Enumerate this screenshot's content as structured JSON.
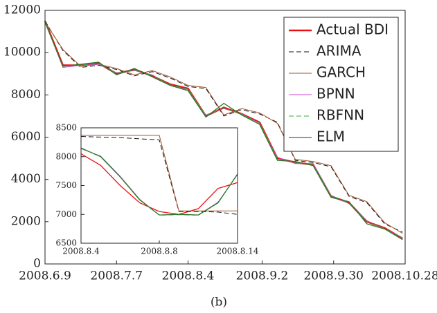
{
  "chart_data": [
    {
      "type": "line",
      "x": [
        "2008.6.9",
        "2008.6.16",
        "2008.6.23",
        "2008.6.30",
        "2008.7.7",
        "2008.7.14",
        "2008.7.21",
        "2008.7.28",
        "2008.8.4",
        "2008.8.11",
        "2008.8.18",
        "2008.8.25",
        "2008.9.1",
        "2008.9.8",
        "2008.9.15",
        "2008.9.22",
        "2008.9.29",
        "2008.10.6",
        "2008.10.13",
        "2008.10.20",
        "2008.10.27"
      ],
      "series": [
        {
          "name": "Actual BDI",
          "color": "#ee1111",
          "linewidth": 2.6,
          "linestyle": "solid",
          "values": [
            11500,
            9400,
            9400,
            9500,
            9000,
            9200,
            8900,
            8500,
            8300,
            7000,
            7400,
            7100,
            6700,
            5000,
            4800,
            4700,
            3200,
            2900,
            2000,
            1700,
            1200
          ]
        },
        {
          "name": "ARIMA",
          "color": "#111111",
          "linewidth": 1,
          "linestyle": "dashed",
          "values": [
            11500,
            10100,
            9300,
            9400,
            9200,
            8900,
            9100,
            8800,
            8400,
            8300,
            7000,
            7300,
            7100,
            6700,
            4900,
            4800,
            4600,
            3200,
            2900,
            1900,
            1500
          ]
        },
        {
          "name": "GARCH",
          "color": "#a0522d",
          "linewidth": 1,
          "linestyle": "solid",
          "values": [
            11450,
            10150,
            9350,
            9450,
            9250,
            8950,
            9150,
            8850,
            8450,
            8350,
            7050,
            7350,
            7150,
            6650,
            4950,
            4850,
            4650,
            3250,
            2950,
            1950,
            1450
          ]
        },
        {
          "name": "BPNN",
          "color": "#cc44cc",
          "linewidth": 1,
          "linestyle": "solid",
          "values": [
            11500,
            9300,
            9400,
            9450,
            9050,
            9150,
            8950,
            8450,
            8250,
            7050,
            7350,
            7100,
            6650,
            5050,
            4750,
            4750,
            3250,
            2850,
            2050,
            1650,
            1250
          ]
        },
        {
          "name": "RBFNN",
          "color": "#33aa33",
          "linewidth": 1,
          "linestyle": "dashed",
          "values": [
            11480,
            9350,
            9420,
            9480,
            9020,
            9180,
            8920,
            8480,
            8280,
            7020,
            7380,
            7080,
            6680,
            4980,
            4780,
            4720,
            3220,
            2880,
            2020,
            1680,
            1220
          ]
        },
        {
          "name": "ELM",
          "color": "#2a7a2a",
          "linewidth": 1.3,
          "linestyle": "solid",
          "values": [
            11450,
            9350,
            9450,
            9550,
            8950,
            9250,
            8850,
            8450,
            8200,
            6950,
            7600,
            7050,
            6600,
            4900,
            4850,
            4650,
            3150,
            2950,
            1900,
            1650,
            1150
          ]
        }
      ],
      "xlim": [
        "2008.6.9",
        "2008.10.28"
      ],
      "xticks": [
        "2008.6.9",
        "2008.7.7",
        "2008.8.4",
        "2008.9.2",
        "2008.9.30",
        "2008.10.28"
      ],
      "ylim": [
        0,
        12000
      ],
      "yticks": [
        0,
        2000,
        4000,
        6000,
        8000,
        10000,
        12000
      ],
      "legend": "upper right"
    },
    {
      "type": "line",
      "categories": [
        "2008.8.4",
        null,
        null,
        null,
        "2008.8.8",
        null,
        null,
        null,
        "2008.8.14"
      ],
      "series": [
        {
          "color": "#ee1111",
          "linewidth": 1.3,
          "linestyle": "solid",
          "values": [
            8050,
            7850,
            7500,
            7200,
            7050,
            7000,
            7100,
            7450,
            7550
          ]
        },
        {
          "color": "#111111",
          "linewidth": 1,
          "linestyle": "dashed",
          "values": [
            8350,
            8340,
            8330,
            8310,
            8290,
            7050,
            7050,
            7040,
            7000
          ]
        },
        {
          "color": "#a0522d",
          "linewidth": 1,
          "linestyle": "solid",
          "values": [
            8370,
            8370,
            8370,
            8370,
            8370,
            7060,
            7060,
            7060,
            7060
          ]
        },
        {
          "color": "#cc44cc",
          "linewidth": 1,
          "linestyle": "solid",
          "values": [
            8140,
            8010,
            7660,
            7260,
            6990,
            7000,
            6990,
            7210,
            7690
          ]
        },
        {
          "color": "#33aa33",
          "linewidth": 1,
          "linestyle": "dashed",
          "values": [
            8145,
            8005,
            7655,
            7255,
            6985,
            6995,
            6985,
            7205,
            7695
          ]
        },
        {
          "color": "#2a7a2a",
          "linewidth": 1.3,
          "linestyle": "solid",
          "values": [
            8150,
            8000,
            7650,
            7250,
            6990,
            7000,
            6990,
            7200,
            7700
          ]
        }
      ],
      "ylim": [
        6500,
        8500
      ],
      "yticks": [
        6500,
        7000,
        7500,
        8000,
        8500
      ]
    }
  ],
  "caption": "(b)"
}
